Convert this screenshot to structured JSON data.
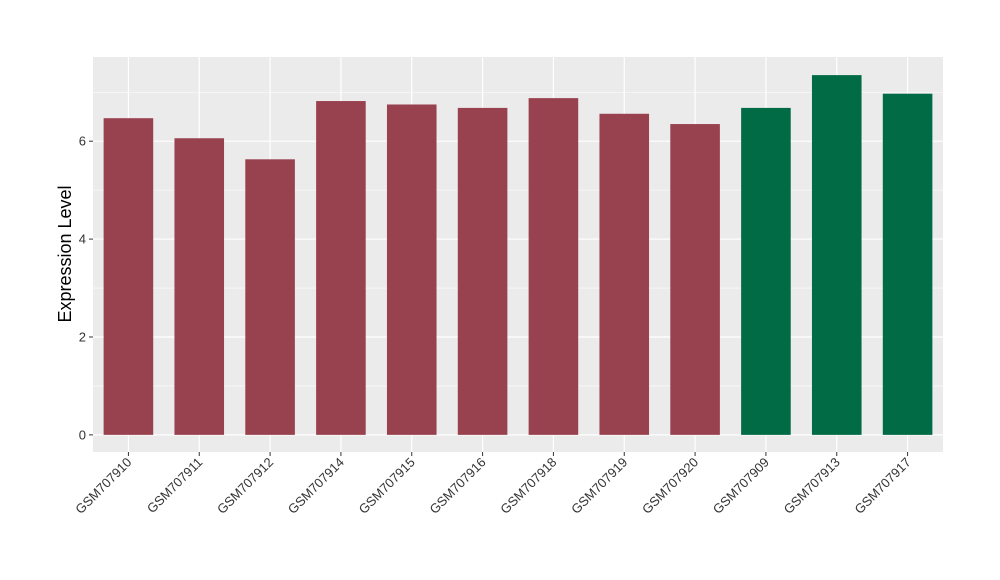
{
  "chart_data": {
    "type": "bar",
    "title": "",
    "xlabel": "",
    "ylabel": "Expression Level",
    "categories": [
      "GSM707910",
      "GSM707911",
      "GSM707912",
      "GSM707914",
      "GSM707915",
      "GSM707916",
      "GSM707918",
      "GSM707919",
      "GSM707920",
      "GSM707909",
      "GSM707913",
      "GSM707917"
    ],
    "values": [
      6.47,
      6.06,
      5.63,
      6.82,
      6.75,
      6.68,
      6.88,
      6.56,
      6.35,
      6.68,
      7.35,
      6.97
    ],
    "bar_colors": [
      "#99424f",
      "#99424f",
      "#99424f",
      "#99424f",
      "#99424f",
      "#99424f",
      "#99424f",
      "#99424f",
      "#99424f",
      "#006b45",
      "#006b45",
      "#006b45"
    ],
    "yticks": [
      0,
      2,
      4,
      6
    ],
    "ylim": [
      -0.35,
      7.72
    ],
    "grid": true,
    "panel_background": "#ebebeb",
    "grid_color": "#ffffff"
  }
}
